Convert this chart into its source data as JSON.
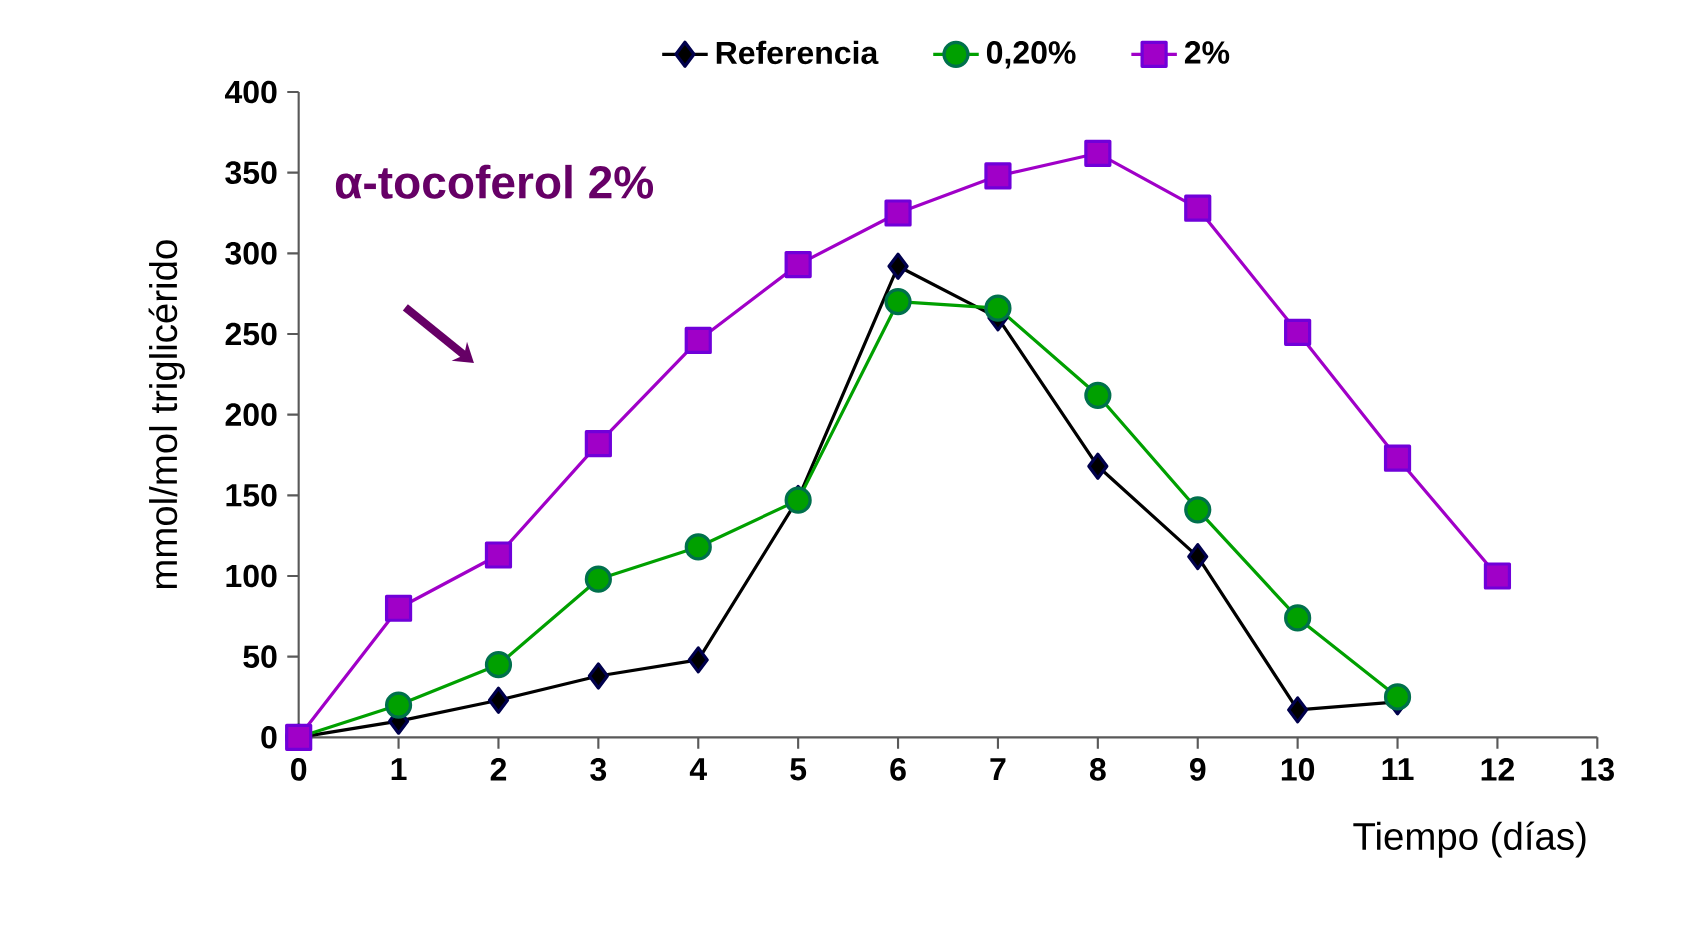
{
  "chart_data": {
    "type": "line",
    "xlabel": "Tiempo (días)",
    "ylabel": "mmol/mol triglicérido",
    "x": [
      0,
      1,
      2,
      3,
      4,
      5,
      6,
      7,
      8,
      9,
      10,
      11,
      12
    ],
    "series": [
      {
        "name": "Referencia",
        "color": "#000000",
        "marker": "diamond",
        "values": [
          0,
          10,
          23,
          38,
          48,
          148,
          292,
          260,
          168,
          112,
          17,
          22,
          null
        ]
      },
      {
        "name": "0,20%",
        "color": "#00a000",
        "marker": "circle",
        "values": [
          0,
          20,
          45,
          98,
          118,
          147,
          270,
          266,
          212,
          141,
          74,
          25,
          null
        ]
      },
      {
        "name": "2%",
        "color": "#a000c8",
        "marker": "square",
        "values": [
          0,
          80,
          113,
          182,
          246,
          293,
          325,
          348,
          362,
          328,
          251,
          173,
          100
        ]
      }
    ],
    "xlim": [
      0,
      13
    ],
    "xticks": [
      0,
      1,
      2,
      3,
      4,
      5,
      6,
      7,
      8,
      9,
      10,
      11,
      12,
      13
    ],
    "ylim": [
      0,
      400
    ],
    "yticks": [
      0,
      50,
      100,
      150,
      200,
      250,
      300,
      350,
      400
    ],
    "grid": false,
    "legend": "top",
    "line_style": "solid",
    "annotations": [
      "α-tocoferol 2%"
    ]
  }
}
